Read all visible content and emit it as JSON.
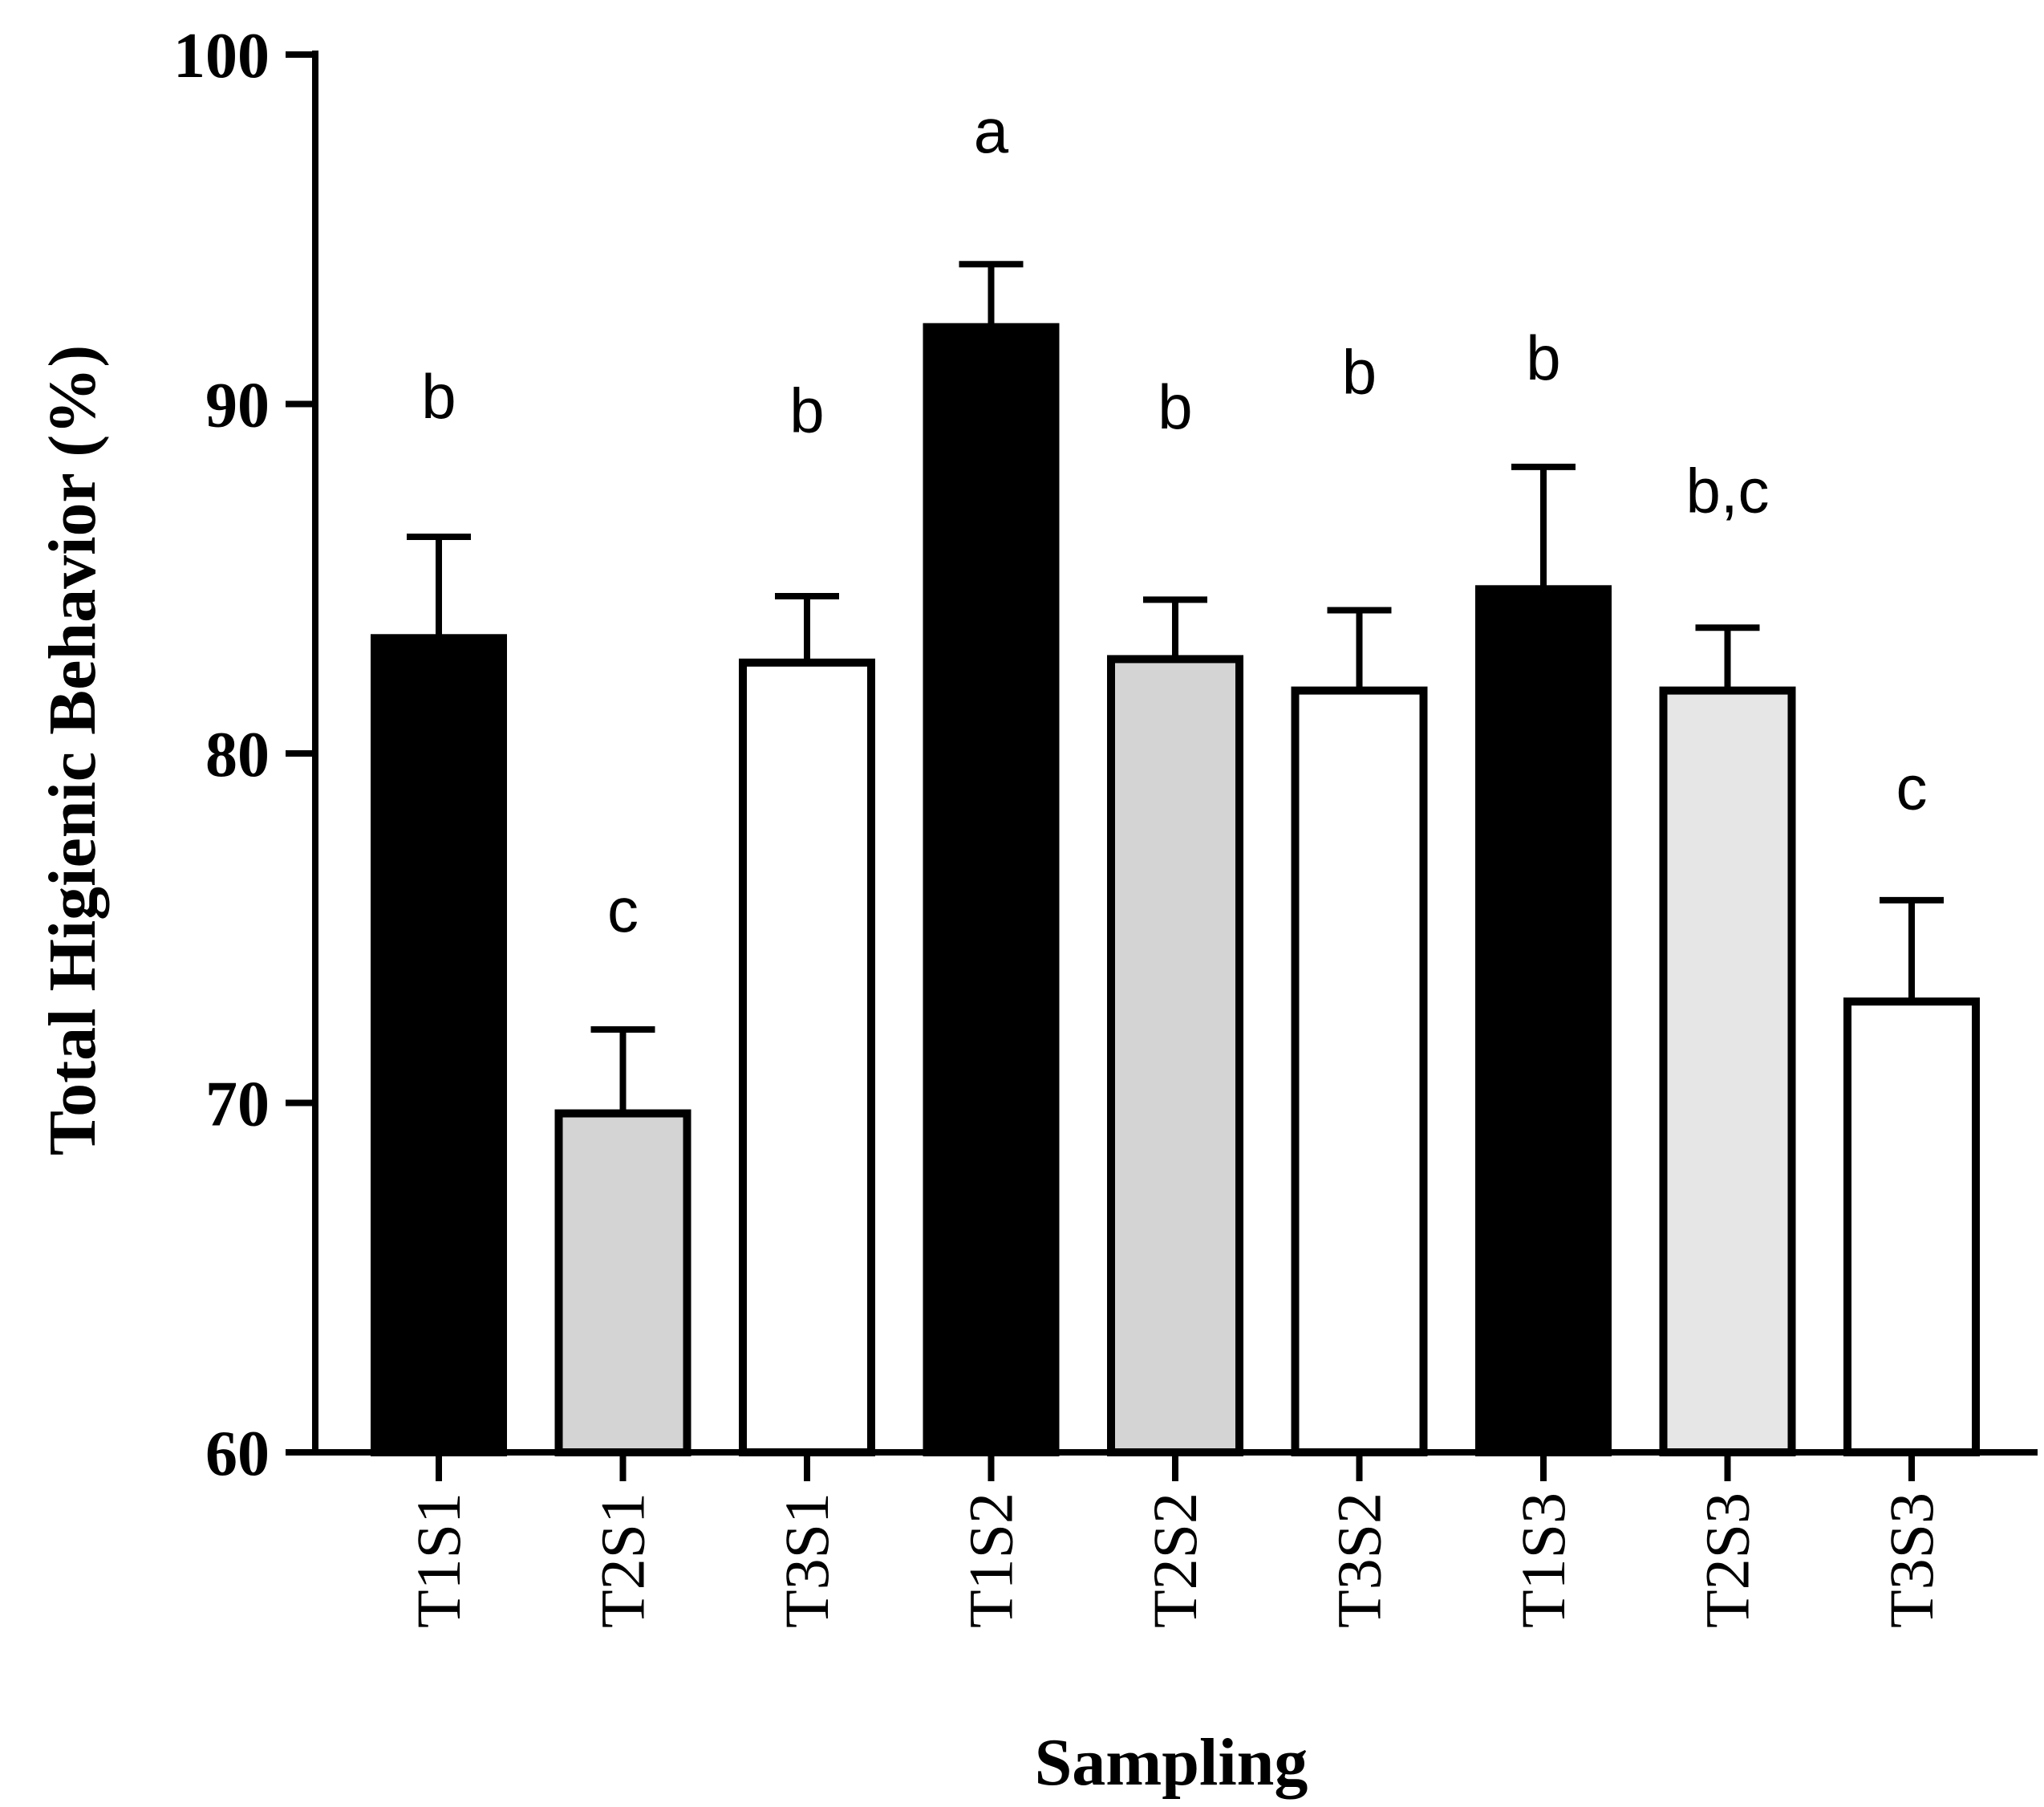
{
  "chart_data": {
    "type": "bar",
    "title": "",
    "xlabel": "Sampling",
    "ylabel": "Total Higienic Behavior (%)",
    "ylim": [
      60,
      100
    ],
    "yticks": [
      "60",
      "70",
      "80",
      "90",
      "100"
    ],
    "grid": false,
    "categories": [
      "T1S1",
      "T2S1",
      "T3S1",
      "T1S2",
      "T2S2",
      "T3S2",
      "T1S3",
      "T2S3",
      "T3S3"
    ],
    "values": [
      83.3,
      69.7,
      82.6,
      92.2,
      82.7,
      81.8,
      84.7,
      81.8,
      72.9
    ],
    "error_upper": [
      2.9,
      2.4,
      1.9,
      1.8,
      1.7,
      2.3,
      3.5,
      1.8,
      2.9
    ],
    "significance": [
      "b",
      "c",
      "b",
      "a",
      "b",
      "b",
      "b",
      "b,c",
      "c"
    ],
    "significance_y": [
      89.6,
      74.9,
      89.2,
      97.2,
      89.3,
      90.3,
      90.7,
      86.9,
      78.4
    ],
    "fills": [
      "#000000",
      "#d4d4d4",
      "#ffffff",
      "#000000",
      "#d4d4d4",
      "#ffffff",
      "#000000",
      "#e6e6e6",
      "#ffffff"
    ]
  }
}
